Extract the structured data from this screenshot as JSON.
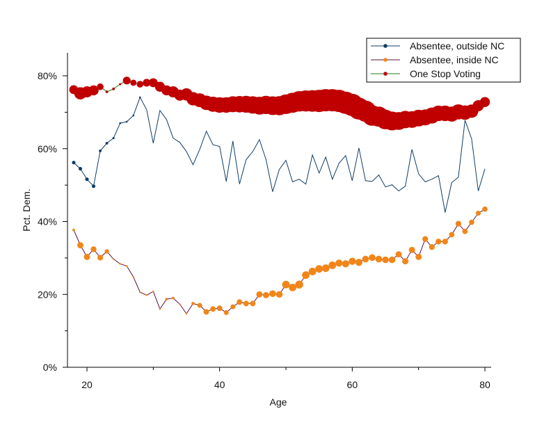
{
  "chart_data": {
    "type": "line",
    "title": "",
    "xlabel": "Age",
    "ylabel": "Pct. Dem.",
    "xlim": [
      17.8,
      80.8
    ],
    "ylim": [
      0,
      87
    ],
    "x_ticks": [
      20,
      40,
      60,
      80
    ],
    "x_tick_labels": [
      "20",
      "40",
      "60",
      "80"
    ],
    "x_minor_ticks": [
      30,
      50,
      70
    ],
    "y_ticks": [
      0,
      20,
      40,
      60,
      80
    ],
    "y_tick_labels": [
      "0%",
      "20%",
      "40%",
      "60%",
      "80%"
    ],
    "y_minor_ticks": [
      10,
      30,
      50,
      70
    ],
    "grid": false,
    "legend_position": "top-right",
    "x": [
      18,
      19,
      20,
      21,
      22,
      23,
      24,
      25,
      26,
      27,
      28,
      29,
      30,
      31,
      32,
      33,
      34,
      35,
      36,
      37,
      38,
      39,
      40,
      41,
      42,
      43,
      44,
      45,
      46,
      47,
      48,
      49,
      50,
      51,
      52,
      53,
      54,
      55,
      56,
      57,
      58,
      59,
      60,
      61,
      62,
      63,
      64,
      65,
      66,
      67,
      68,
      69,
      70,
      71,
      72,
      73,
      74,
      75,
      76,
      77,
      78,
      79,
      80
    ],
    "series": [
      {
        "name": "Absentee, outside NC",
        "line_color": "#0f3c66",
        "marker_color": "#0f3c66",
        "values": [
          56.2,
          54.5,
          51.6,
          49.7,
          59.4,
          61.5,
          62.9,
          67.0,
          67.4,
          69.1,
          74.1,
          70.7,
          61.5,
          70.5,
          68.0,
          62.9,
          61.7,
          59.2,
          55.6,
          59.8,
          64.8,
          61.1,
          60.6,
          51.0,
          62.1,
          50.3,
          57.0,
          59.2,
          62.5,
          57.0,
          48.2,
          54.3,
          56.8,
          50.9,
          51.6,
          50.3,
          58.3,
          53.3,
          57.7,
          51.6,
          56.0,
          58.1,
          51.2,
          60.2,
          51.2,
          51.0,
          52.8,
          49.5,
          50.1,
          48.4,
          49.7,
          59.8,
          53.1,
          50.9,
          51.6,
          52.6,
          42.5,
          50.7,
          52.2,
          67.8,
          62.7,
          48.4,
          54.5
        ],
        "weights": [
          0.16,
          0.16,
          0.16,
          0.16,
          0.12,
          0.12,
          0.1,
          0.08,
          0.06,
          0.06,
          0.05,
          0,
          0,
          0,
          0,
          0,
          0,
          0,
          0,
          0,
          0,
          0,
          0,
          0,
          0,
          0,
          0,
          0,
          0,
          0,
          0,
          0,
          0,
          0,
          0,
          0,
          0,
          0,
          0,
          0,
          0,
          0,
          0,
          0,
          0,
          0,
          0,
          0,
          0,
          0,
          0,
          0,
          0,
          0,
          0,
          0,
          0,
          0,
          0,
          0,
          0,
          0,
          0
        ]
      },
      {
        "name": "Absentee, inside NC",
        "line_color": "#5a0f3c",
        "marker_color": "#f0861a",
        "values": [
          37.7,
          33.5,
          30.3,
          32.4,
          30.1,
          31.8,
          29.7,
          28.4,
          27.8,
          24.8,
          20.6,
          19.8,
          20.8,
          16.0,
          18.7,
          19.0,
          17.3,
          14.7,
          17.5,
          17.0,
          15.2,
          16.0,
          16.2,
          15.0,
          16.6,
          17.9,
          17.5,
          17.5,
          20.0,
          19.8,
          20.2,
          20.0,
          22.7,
          21.9,
          22.7,
          25.3,
          26.3,
          27.0,
          27.2,
          28.0,
          28.6,
          28.4,
          29.1,
          28.8,
          29.7,
          30.1,
          29.7,
          29.5,
          29.5,
          31.0,
          29.1,
          32.2,
          30.3,
          35.2,
          33.0,
          34.5,
          34.5,
          36.4,
          39.4,
          37.3,
          39.8,
          42.3,
          43.4
        ],
        "weights": [
          0.12,
          0.28,
          0.28,
          0.26,
          0.26,
          0.2,
          0.08,
          0.05,
          0.05,
          0.05,
          0.05,
          0.05,
          0.05,
          0.05,
          0.12,
          0.12,
          0.08,
          0.05,
          0.15,
          0.22,
          0.25,
          0.25,
          0.25,
          0.22,
          0.22,
          0.25,
          0.25,
          0.25,
          0.28,
          0.28,
          0.3,
          0.3,
          0.34,
          0.34,
          0.36,
          0.34,
          0.34,
          0.34,
          0.34,
          0.34,
          0.32,
          0.32,
          0.32,
          0.32,
          0.3,
          0.3,
          0.3,
          0.3,
          0.3,
          0.28,
          0.28,
          0.28,
          0.28,
          0.26,
          0.26,
          0.26,
          0.26,
          0.24,
          0.26,
          0.24,
          0.24,
          0.22,
          0.24
        ]
      },
      {
        "name": "One Stop Voting",
        "line_color": "#1e7a1e",
        "marker_color": "#c00000",
        "values": [
          76.2,
          75.2,
          75.6,
          76.0,
          77.0,
          75.6,
          76.4,
          77.7,
          78.7,
          78.1,
          77.7,
          78.1,
          78.1,
          77.0,
          76.0,
          75.6,
          74.7,
          74.9,
          73.7,
          73.3,
          72.6,
          72.2,
          72.0,
          72.0,
          72.2,
          72.2,
          72.2,
          72.0,
          71.8,
          72.0,
          71.8,
          71.8,
          72.2,
          72.6,
          73.0,
          73.1,
          73.1,
          73.1,
          73.3,
          73.3,
          73.1,
          72.6,
          72.0,
          71.0,
          70.3,
          69.1,
          68.8,
          68.0,
          67.6,
          67.6,
          68.0,
          68.0,
          68.4,
          68.6,
          69.1,
          69.7,
          69.7,
          69.5,
          70.1,
          69.9,
          70.3,
          71.8,
          72.8
        ],
        "weights": [
          0.4,
          0.55,
          0.5,
          0.45,
          0.3,
          0.12,
          0.12,
          0.1,
          0.35,
          0.28,
          0.3,
          0.35,
          0.4,
          0.45,
          0.45,
          0.5,
          0.5,
          0.55,
          0.6,
          0.62,
          0.65,
          0.68,
          0.7,
          0.7,
          0.72,
          0.74,
          0.76,
          0.78,
          0.8,
          0.82,
          0.84,
          0.86,
          0.88,
          0.9,
          0.92,
          0.95,
          0.97,
          1.0,
          1.0,
          1.0,
          1.0,
          1.0,
          1.0,
          0.98,
          0.95,
          0.92,
          0.9,
          0.88,
          0.85,
          0.8,
          0.78,
          0.75,
          0.75,
          0.72,
          0.72,
          0.7,
          0.7,
          0.68,
          0.68,
          0.65,
          0.6,
          0.5,
          0.45
        ]
      }
    ]
  }
}
